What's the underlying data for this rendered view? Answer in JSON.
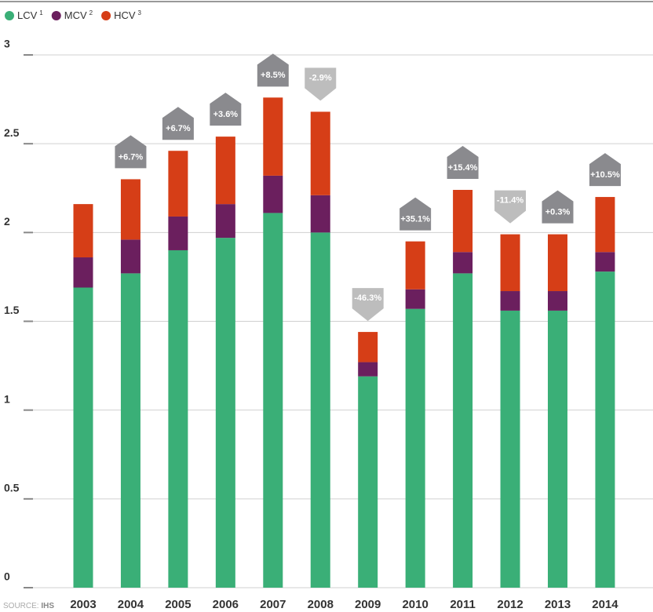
{
  "chart_data": {
    "type": "stacked_bar",
    "categories": [
      "2003",
      "2004",
      "2005",
      "2006",
      "2007",
      "2008",
      "2009",
      "2010",
      "2011",
      "2012",
      "2013",
      "2014"
    ],
    "series": [
      {
        "name": "LCV",
        "note": "1",
        "color": "#3aaf77",
        "values": [
          1.69,
          1.77,
          1.9,
          1.97,
          2.11,
          2.0,
          1.19,
          1.57,
          1.77,
          1.56,
          1.56,
          1.78
        ]
      },
      {
        "name": "MCV",
        "note": "2",
        "color": "#6b1f5e",
        "values": [
          0.17,
          0.19,
          0.19,
          0.19,
          0.21,
          0.21,
          0.08,
          0.11,
          0.12,
          0.11,
          0.11,
          0.11
        ]
      },
      {
        "name": "HCV",
        "note": "3",
        "color": "#d63e17",
        "values": [
          0.3,
          0.34,
          0.37,
          0.38,
          0.44,
          0.47,
          0.17,
          0.27,
          0.35,
          0.32,
          0.32,
          0.31
        ]
      }
    ],
    "annotations": [
      null,
      "+6.7%",
      "+6.7%",
      "+3.6%",
      "+8.5%",
      "-2.9%",
      "-46.3%",
      "+35.1%",
      "+15.4%",
      "-11.4%",
      "+0.3%",
      "+10.5%"
    ],
    "annotation_colors": {
      "up": "#8a8a8e",
      "down": "#bdbdbd"
    },
    "ylim": [
      0,
      3
    ],
    "yticks": [
      0,
      0.5,
      1,
      1.5,
      2,
      2.5,
      3
    ],
    "grid": true,
    "source_label": "SOURCE:",
    "source": "IHS"
  }
}
